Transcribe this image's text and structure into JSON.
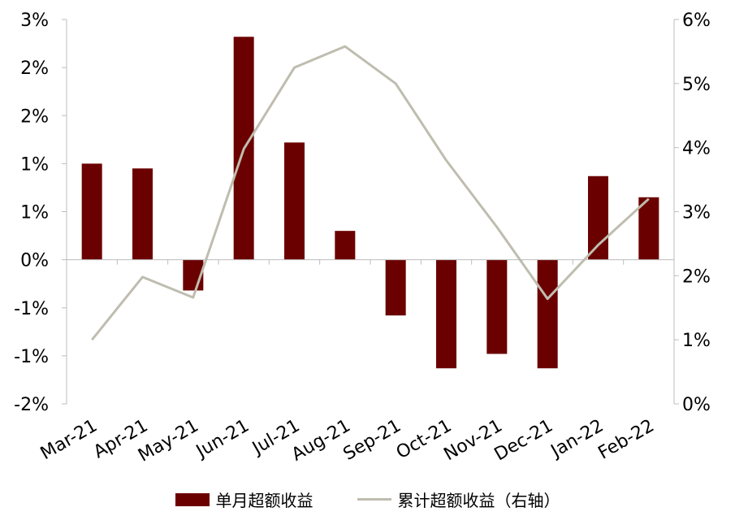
{
  "colors": {
    "bar": "#6b0000",
    "line": "#bfbdaf",
    "axis": "#bdbdbd"
  },
  "legend": {
    "bar_label": "单月超额收益",
    "line_label": "累计超额收益（右轴）"
  },
  "chart_data": {
    "type": "bar",
    "categories": [
      "Mar-21",
      "Apr-21",
      "May-21",
      "Jun-21",
      "Jul-21",
      "Aug-21",
      "Sep-21",
      "Oct-21",
      "Nov-21",
      "Dec-21",
      "Jan-22",
      "Feb-22"
    ],
    "series": [
      {
        "name": "单月超额收益",
        "type": "bar",
        "axis": "left",
        "values": [
          1.0,
          0.95,
          -0.32,
          2.32,
          1.22,
          0.3,
          -0.58,
          -1.13,
          -0.98,
          -1.13,
          0.87,
          0.65
        ]
      },
      {
        "name": "累计超额收益（右轴）",
        "type": "line",
        "axis": "right",
        "values": [
          1.0,
          1.98,
          1.66,
          3.98,
          5.25,
          5.58,
          5.0,
          3.8,
          2.76,
          1.64,
          2.48,
          3.2
        ]
      }
    ],
    "y_left": {
      "ylim": [
        -1.5,
        2.5
      ],
      "ticks": [
        2.5,
        2.0,
        1.5,
        1.0,
        0.5,
        0.0,
        -0.5,
        -1.0,
        -1.5
      ],
      "tick_labels": [
        "3%",
        "2%",
        "2%",
        "1%",
        "1%",
        "0%",
        "-1%",
        "-1%",
        "-2%"
      ]
    },
    "y_right": {
      "ylim": [
        0,
        6
      ],
      "ticks": [
        6,
        5,
        4,
        3,
        2,
        1,
        0
      ],
      "tick_labels": [
        "6%",
        "5%",
        "4%",
        "3%",
        "2%",
        "1%",
        "0%"
      ]
    },
    "legend_position": "bottom"
  }
}
